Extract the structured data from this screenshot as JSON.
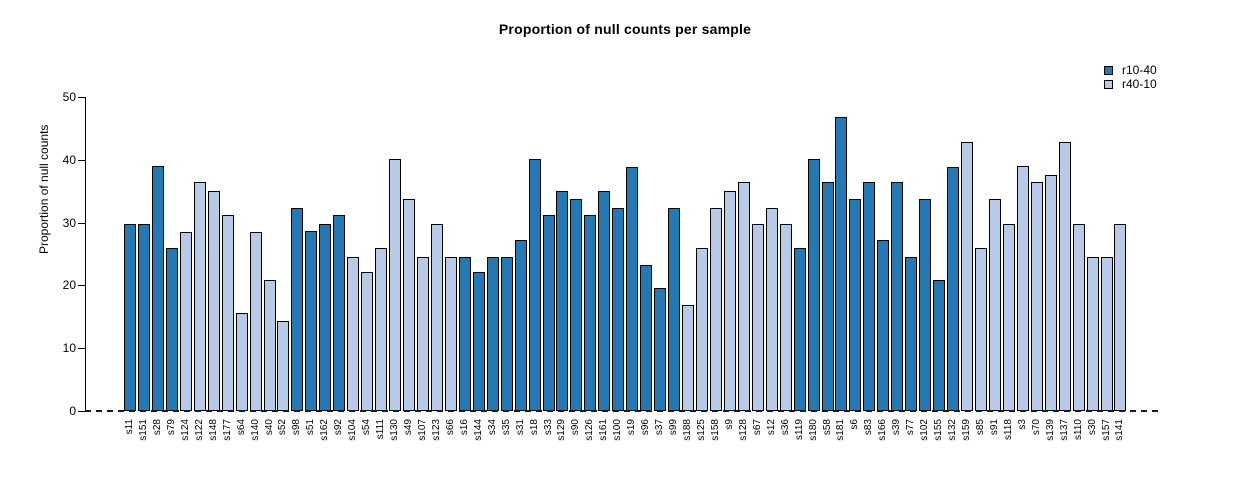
{
  "chart_data": {
    "type": "bar",
    "title": "Proportion of null counts per sample",
    "xlabel": "",
    "ylabel": "Proportion of null counts",
    "ylim": [
      0,
      50
    ],
    "y_ticks": [
      0,
      10,
      20,
      30,
      40,
      50
    ],
    "grid": false,
    "legend_position": "top-right",
    "bar_border_color": "#000000",
    "series": [
      {
        "name": "r10-40",
        "color": "#2478b4"
      },
      {
        "name": "r40-10",
        "color": "#b7cbe8"
      }
    ],
    "categories": [
      "s11",
      "s151",
      "s28",
      "s79",
      "s124",
      "s122",
      "s148",
      "s177",
      "s64",
      "s140",
      "s40",
      "s52",
      "s98",
      "s51",
      "s162",
      "s92",
      "s104",
      "s54",
      "s111",
      "s130",
      "s49",
      "s107",
      "s123",
      "s66",
      "s16",
      "s144",
      "s34",
      "s35",
      "s31",
      "s18",
      "s33",
      "s129",
      "s90",
      "s126",
      "s161",
      "s100",
      "s19",
      "s96",
      "s37",
      "s99",
      "s188",
      "s125",
      "s158",
      "s9",
      "s128",
      "s67",
      "s12",
      "s36",
      "s119",
      "s180",
      "s58",
      "s181",
      "s6",
      "s83",
      "s166",
      "s39",
      "s77",
      "s102",
      "s155",
      "s132",
      "s159",
      "s85",
      "s91",
      "s118",
      "s3",
      "s70",
      "s139",
      "s137",
      "s110",
      "s30",
      "s157",
      "s141"
    ],
    "values": [
      29.8,
      29.8,
      39.0,
      26.0,
      28.5,
      36.4,
      35.0,
      31.2,
      15.6,
      28.5,
      20.8,
      14.3,
      32.4,
      28.6,
      29.8,
      31.2,
      24.6,
      22.1,
      26.0,
      40.2,
      33.8,
      24.6,
      29.8,
      24.6,
      24.6,
      22.1,
      24.6,
      24.6,
      27.3,
      40.2,
      31.2,
      35.0,
      33.7,
      31.2,
      35.0,
      32.4,
      38.9,
      23.3,
      19.6,
      32.4,
      16.9,
      26.0,
      32.4,
      35.0,
      36.4,
      29.8,
      32.4,
      29.8,
      26.0,
      40.2,
      36.4,
      46.8,
      33.8,
      36.4,
      27.3,
      36.4,
      24.6,
      33.7,
      20.8,
      38.9,
      42.8,
      26.0,
      33.8,
      29.8,
      39.0,
      36.4,
      37.6,
      42.8,
      29.8,
      24.6,
      24.6,
      29.8
    ],
    "series_index": [
      0,
      0,
      0,
      0,
      1,
      1,
      1,
      1,
      1,
      1,
      1,
      1,
      0,
      0,
      0,
      0,
      1,
      1,
      1,
      1,
      1,
      1,
      1,
      1,
      0,
      0,
      0,
      0,
      0,
      0,
      0,
      0,
      0,
      0,
      0,
      0,
      0,
      0,
      0,
      0,
      1,
      1,
      1,
      1,
      1,
      1,
      1,
      1,
      0,
      0,
      0,
      0,
      0,
      0,
      0,
      0,
      0,
      0,
      0,
      0,
      1,
      1,
      1,
      1,
      1,
      1,
      1,
      1,
      1,
      1,
      1,
      1
    ]
  }
}
